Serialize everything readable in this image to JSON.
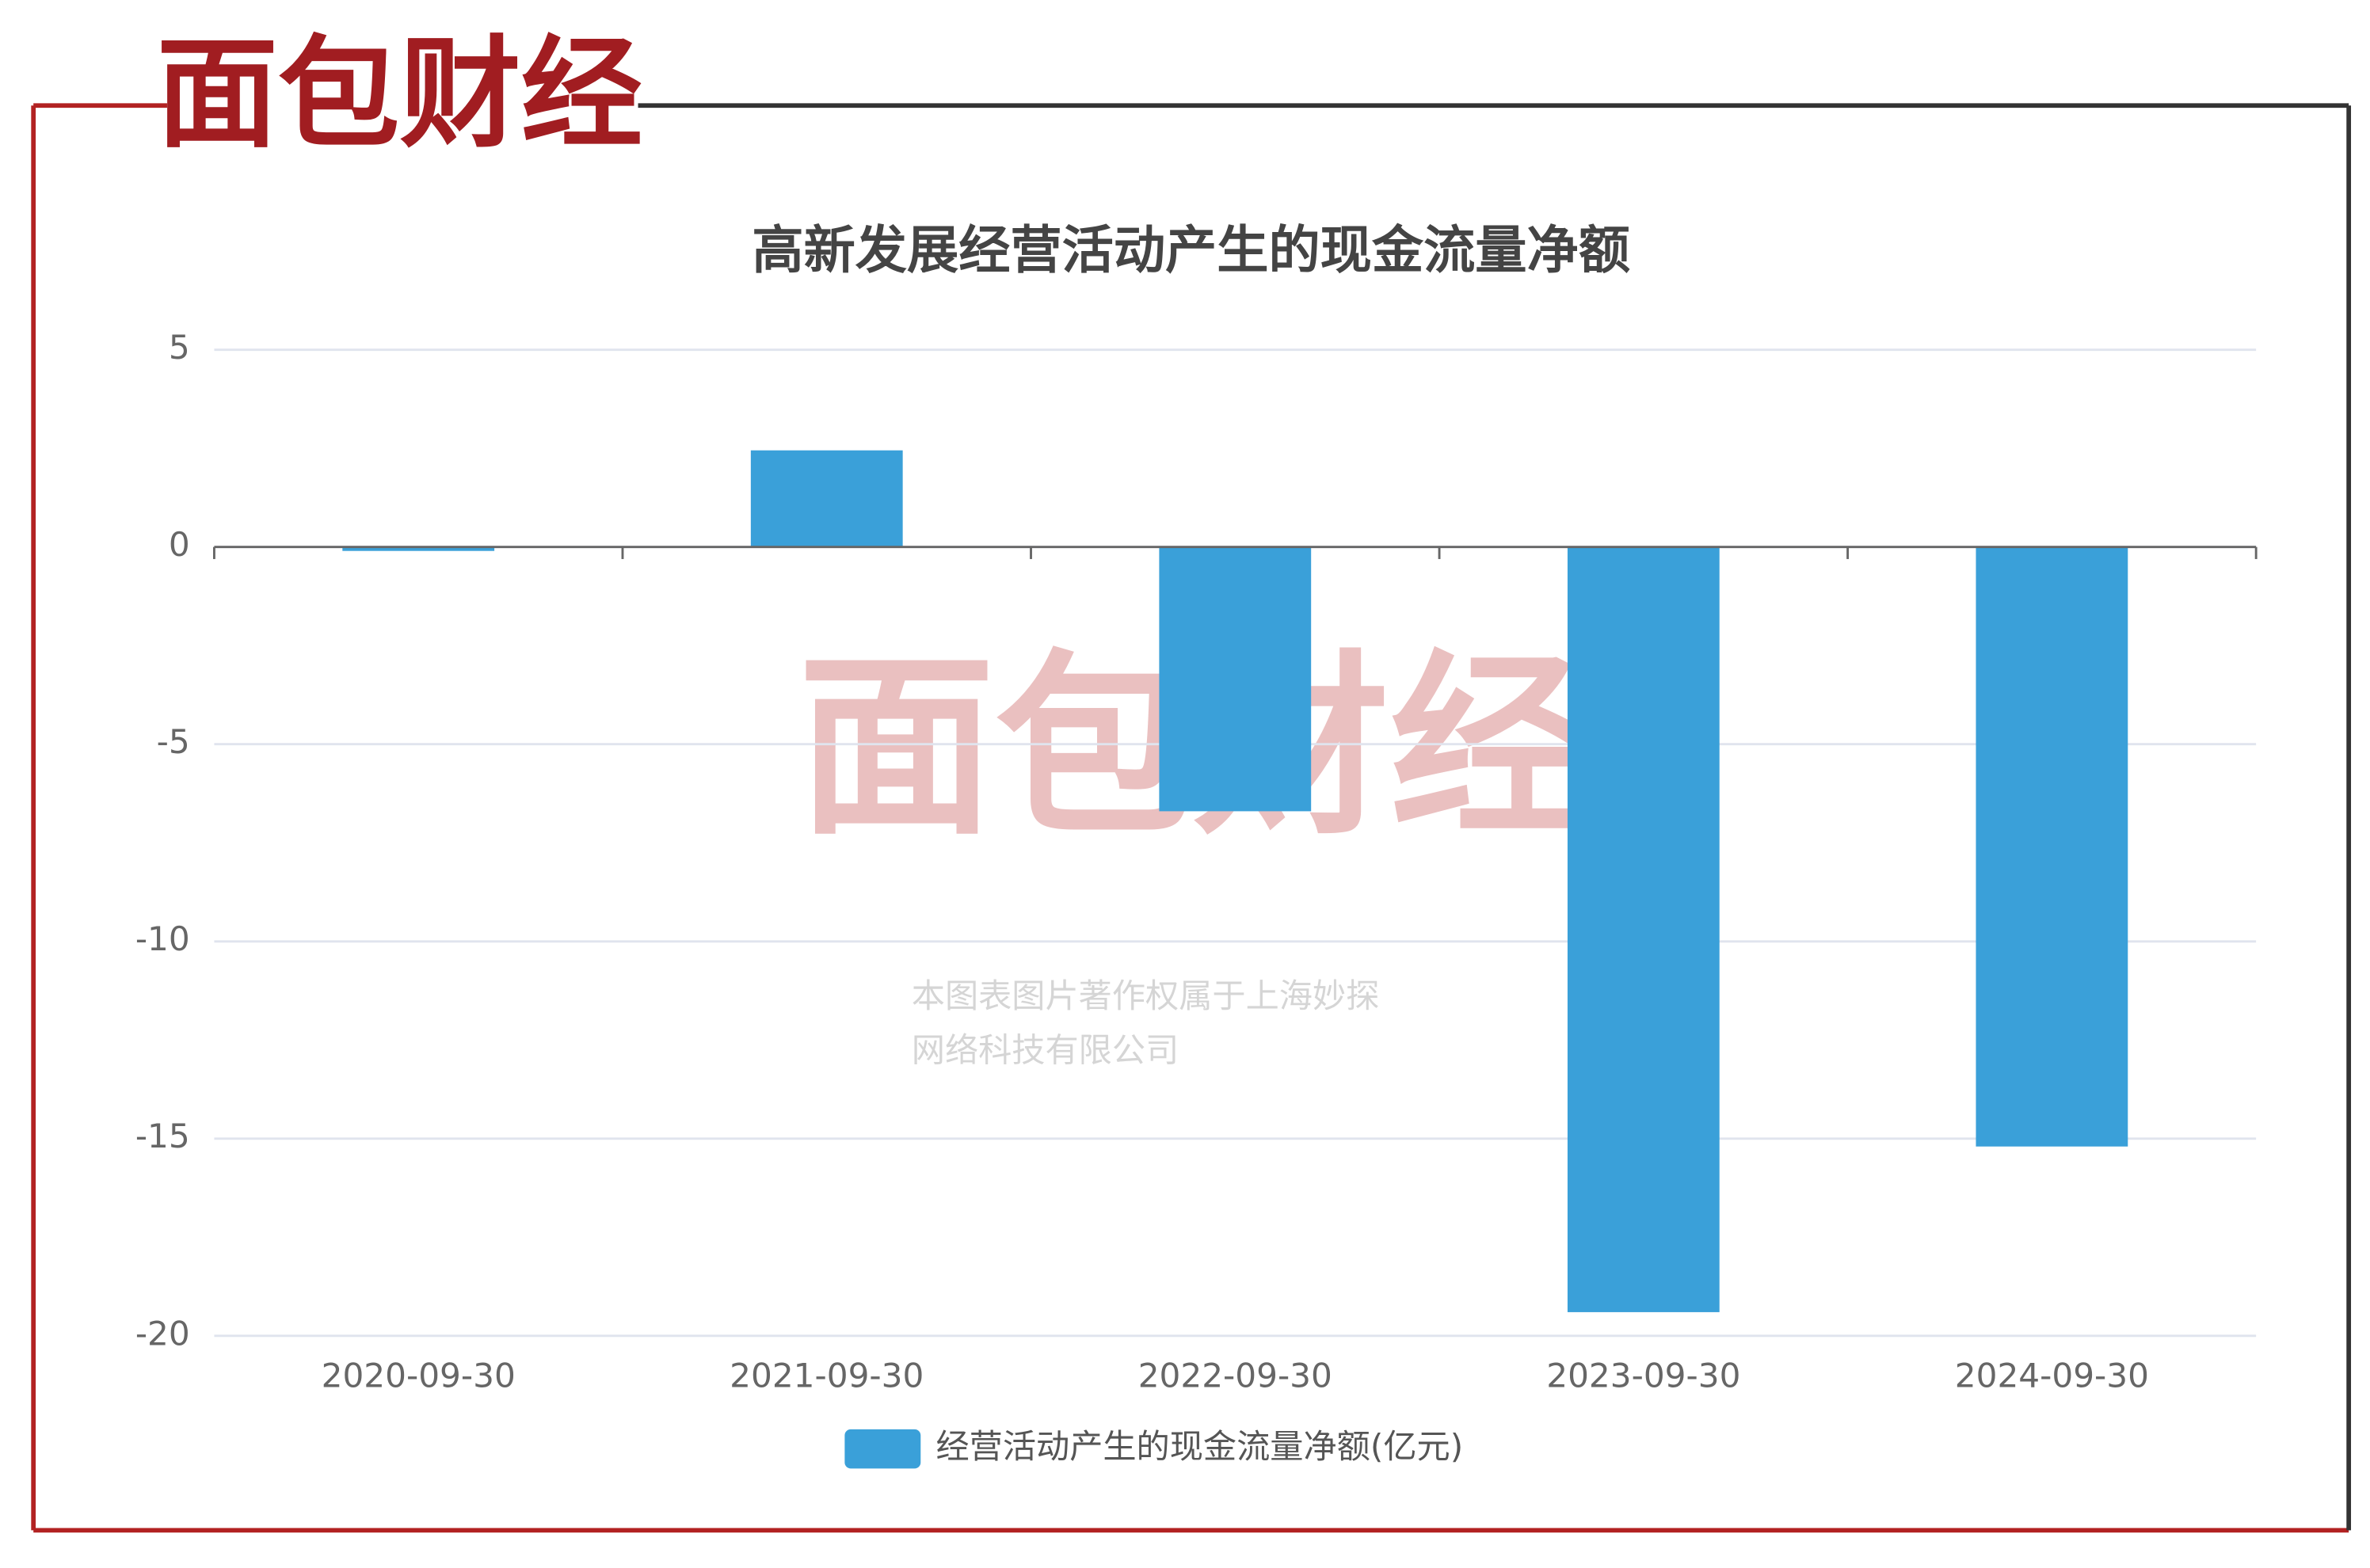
{
  "brand": {
    "logo": "面包财经",
    "watermark_lines": [
      "本图表图片著作权属于上海妙探",
      "网络科技有限公司"
    ]
  },
  "chart_data": {
    "type": "bar",
    "title": "高新发展经营活动产生的现金流量净额",
    "categories": [
      "2020-09-30",
      "2021-09-30",
      "2022-09-30",
      "2023-09-30",
      "2024-09-30"
    ],
    "series": [
      {
        "name": "经营活动产生的现金流量净额(亿元)",
        "color": "#3aa0d9",
        "values": [
          -0.1,
          2.45,
          -6.7,
          -19.4,
          -15.2
        ]
      }
    ],
    "ylim": [
      -20,
      5
    ],
    "yticks": [
      5,
      0,
      -5,
      -10,
      -15,
      -20
    ],
    "grid": true
  }
}
